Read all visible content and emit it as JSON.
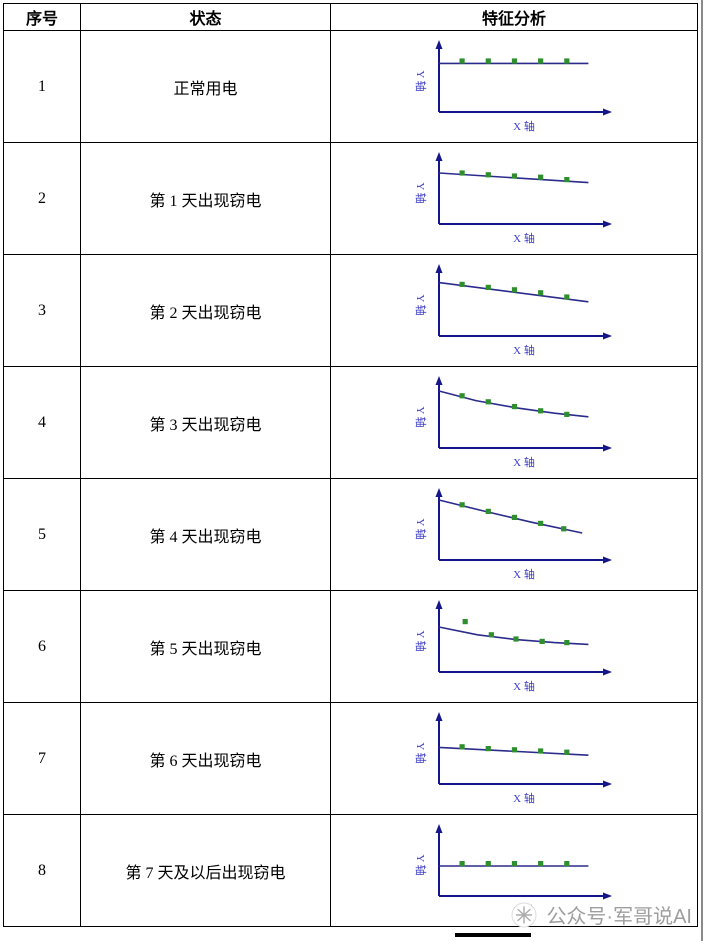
{
  "table": {
    "headers": {
      "no": "序号",
      "status": "状态",
      "analysis": "特征分析"
    },
    "rows": [
      {
        "no": "1",
        "status": "正常用电",
        "chart": {
          "line": [
            [
              0,
              0.24
            ],
            [
              0.97,
              0.24
            ]
          ],
          "points": [
            [
              0.15,
              0.2
            ],
            [
              0.32,
              0.2
            ],
            [
              0.49,
              0.2
            ],
            [
              0.66,
              0.2
            ],
            [
              0.83,
              0.2
            ]
          ]
        }
      },
      {
        "no": "2",
        "status": "第 1 天出现窃电",
        "chart": {
          "line": [
            [
              0,
              0.2
            ],
            [
              0.97,
              0.36
            ]
          ],
          "points": [
            [
              0.15,
              0.2
            ],
            [
              0.32,
              0.23
            ],
            [
              0.49,
              0.25
            ],
            [
              0.66,
              0.27
            ],
            [
              0.83,
              0.31
            ]
          ]
        }
      },
      {
        "no": "3",
        "status": "第 2 天出现窃电",
        "chart": {
          "line": [
            [
              0,
              0.16
            ],
            [
              0.97,
              0.48
            ]
          ],
          "points": [
            [
              0.15,
              0.19
            ],
            [
              0.32,
              0.24
            ],
            [
              0.49,
              0.28
            ],
            [
              0.66,
              0.33
            ],
            [
              0.83,
              0.4
            ]
          ]
        }
      },
      {
        "no": "4",
        "status": "第 3 天出现窃电",
        "chart": {
          "line": [
            [
              0,
              0.1
            ],
            [
              0.24,
              0.26
            ],
            [
              0.5,
              0.38
            ],
            [
              0.75,
              0.47
            ],
            [
              0.97,
              0.53
            ]
          ],
          "points": [
            [
              0.15,
              0.18
            ],
            [
              0.32,
              0.28
            ],
            [
              0.49,
              0.36
            ],
            [
              0.66,
              0.43
            ],
            [
              0.83,
              0.49
            ]
          ]
        }
      },
      {
        "no": "5",
        "status": "第 4 天出现窃电",
        "chart": {
          "line": [
            [
              0,
              0.05
            ],
            [
              0.3,
              0.24
            ],
            [
              0.6,
              0.42
            ],
            [
              0.93,
              0.6
            ]
          ],
          "points": [
            [
              0.15,
              0.13
            ],
            [
              0.32,
              0.24
            ],
            [
              0.49,
              0.34
            ],
            [
              0.66,
              0.44
            ],
            [
              0.81,
              0.53
            ]
          ]
        }
      },
      {
        "no": "6",
        "status": "第 5 天出现窃电",
        "chart": {
          "line": [
            [
              0,
              0.3
            ],
            [
              0.25,
              0.43
            ],
            [
              0.5,
              0.51
            ],
            [
              0.75,
              0.56
            ],
            [
              0.97,
              0.59
            ]
          ],
          "points": [
            [
              0.17,
              0.21
            ],
            [
              0.34,
              0.43
            ],
            [
              0.5,
              0.5
            ],
            [
              0.67,
              0.54
            ],
            [
              0.83,
              0.56
            ]
          ]
        }
      },
      {
        "no": "7",
        "status": "第 6 天出现窃电",
        "chart": {
          "line": [
            [
              0,
              0.44
            ],
            [
              0.97,
              0.57
            ]
          ],
          "points": [
            [
              0.15,
              0.43
            ],
            [
              0.32,
              0.46
            ],
            [
              0.49,
              0.48
            ],
            [
              0.66,
              0.5
            ],
            [
              0.83,
              0.52
            ]
          ]
        }
      },
      {
        "no": "8",
        "status": "第 7 天及以后出现窃电",
        "chart": {
          "line": [
            [
              0,
              0.55
            ],
            [
              0.97,
              0.55
            ]
          ],
          "points": [
            [
              0.15,
              0.51
            ],
            [
              0.32,
              0.51
            ],
            [
              0.49,
              0.51
            ],
            [
              0.66,
              0.51
            ],
            [
              0.83,
              0.51
            ]
          ]
        }
      }
    ]
  },
  "chart_labels": {
    "x_axis": "X 轴",
    "y_axis": "Y 轴"
  },
  "colors": {
    "axis": "#16168b",
    "trend_line": "#2b2b8c",
    "point": "#2f8f2f",
    "axis_label": "#3a3ac8",
    "border": "#000000",
    "watermark_text": "#9e9e9e"
  },
  "watermark": {
    "text": "公众号·军哥说AI"
  }
}
